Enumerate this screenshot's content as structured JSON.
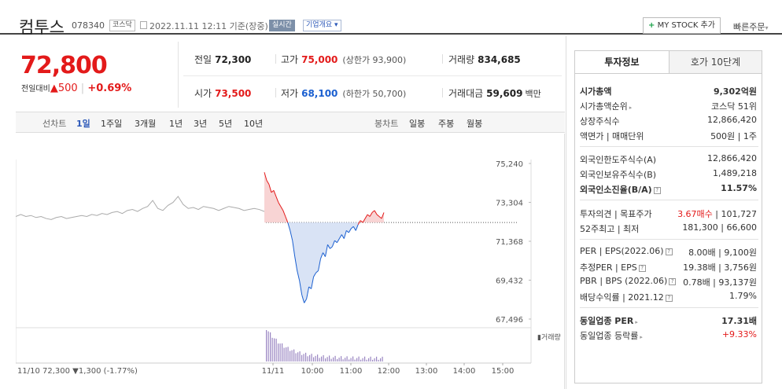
{
  "header": {
    "name": "컴투스",
    "code": "078340",
    "market": "코스닥",
    "datetime": "2022.11.11 12:11 기준(장중)",
    "realtime_badge": "실시간",
    "company_info_label": "기업개요",
    "mystock_label": "MY STOCK 추가",
    "quick_order_label": "빠른주문"
  },
  "price": {
    "current": "72,800",
    "change_label": "전일대비",
    "change_arrow": "▲",
    "change_value": "500",
    "change_pct": "+0.69%"
  },
  "stats": {
    "prev_close": {
      "label": "전일",
      "value": "72,300"
    },
    "high": {
      "label": "고가",
      "value": "75,000",
      "sub": "(상한가 93,900)"
    },
    "volume": {
      "label": "거래량",
      "value": "834,685"
    },
    "open": {
      "label": "시가",
      "value": "73,500"
    },
    "low": {
      "label": "저가",
      "value": "68,100",
      "sub": "(하한가 50,700)"
    },
    "amount": {
      "label": "거래대금",
      "value": "59,609",
      "unit": "백만"
    }
  },
  "periods": {
    "label": "선차트",
    "items": [
      "1일",
      "1주일",
      "3개월",
      "1년",
      "3년",
      "5년",
      "10년"
    ],
    "candle_label": "봉차트",
    "candle_items": [
      "일봉",
      "주봉",
      "월봉"
    ]
  },
  "chart_data": {
    "type": "line",
    "y_ticks": [
      "75,240",
      "73,304",
      "71,368",
      "69,432",
      "67,496"
    ],
    "ylim": [
      67496,
      75240
    ],
    "x_ticks": [
      "11/11",
      "10:00",
      "11:00",
      "12:00",
      "13:00",
      "14:00",
      "15:00"
    ],
    "reference_price": 72300,
    "volume_label": "거래량",
    "prev_day_summary": "11/10  72,300 ▼1,300 (-1.77%)",
    "prev_day": [
      72600,
      72700,
      72600,
      72650,
      72550,
      72600,
      72500,
      72450,
      72550,
      72600,
      72500,
      72550,
      72600,
      72650,
      72600,
      72700,
      72650,
      72750,
      72700,
      72800,
      72850,
      72750,
      72900,
      72950,
      72850,
      73000,
      73100,
      73400,
      73000,
      72900,
      73150,
      73300,
      73600,
      73200,
      73000,
      73050,
      72950,
      73100,
      73050,
      73000,
      72900,
      73000,
      73100,
      73050,
      73000,
      72900,
      72950,
      73000,
      72950,
      72850
    ],
    "today": [
      74800,
      74400,
      74200,
      73800,
      73900,
      73600,
      73300,
      73100,
      72900,
      72600,
      72300,
      71900,
      71400,
      70600,
      69900,
      69400,
      68700,
      68300,
      68500,
      69100,
      69000,
      69600,
      69800,
      69900,
      70500,
      70800,
      70600,
      71200,
      71000,
      71100,
      71400,
      71300,
      71500,
      71700,
      71500,
      71900,
      71800,
      72000,
      72100,
      71900,
      72200,
      72400,
      72300,
      72500,
      72700,
      72600,
      72800,
      72900,
      72700,
      72600,
      72500,
      72800
    ]
  },
  "invest": {
    "tab_active": "투자정보",
    "tab_other": "호가 10단계",
    "market_cap": {
      "label": "시가총액",
      "value": "9,302억원"
    },
    "cap_rank": {
      "label": "시가총액순위",
      "value": "코스닥 51위"
    },
    "listed_shares": {
      "label": "상장주식수",
      "value": "12,866,420"
    },
    "par_value": {
      "label": "액면가 | 매매단위",
      "value": "500원 | 1주"
    },
    "foreign_limit": {
      "label": "외국인한도주식수(A)",
      "value": "12,866,420"
    },
    "foreign_held": {
      "label": "외국인보유주식수(B)",
      "value": "1,489,218"
    },
    "foreign_ratio": {
      "label": "외국인소진율(B/A)",
      "value": "11.57%"
    },
    "opinion": {
      "label": "투자의견 | 목표주가",
      "value_red": "3.67매수",
      "value": "| 101,727"
    },
    "week52": {
      "label": "52주최고 | 최저",
      "value": "181,300 | 66,600"
    },
    "per_eps": {
      "label": "PER | EPS(2022.06)",
      "value": "8.00배 | 9,100원"
    },
    "est_per_eps": {
      "label": "추정PER | EPS",
      "value": "19.38배 | 3,756원"
    },
    "pbr_bps": {
      "label": "PBR | BPS (2022.06)",
      "value": "0.78배 | 93,137원"
    },
    "dividend": {
      "label": "배당수익률 | 2021.12",
      "value": "1.79%"
    },
    "sector_per": {
      "label": "동일업종 PER",
      "value": "17.31배"
    },
    "sector_rate": {
      "label": "동일업종 등락률",
      "value": "+9.33%"
    }
  },
  "colors": {
    "up": "#e31a1a",
    "down": "#1a5fd0",
    "prev_line": "#aaaaaa"
  }
}
